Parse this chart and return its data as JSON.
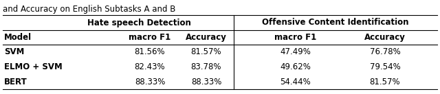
{
  "title": "and Accuracy on English Subtasks A and B",
  "col_group1": "Hate speech Detection",
  "col_group2": "Offensive Content Identification",
  "col_headers": [
    "Model",
    "macro F1",
    "Accuracy",
    "macro F1",
    "Accuracy"
  ],
  "rows": [
    [
      "SVM",
      "81.56%",
      "81.57%",
      "47.49%",
      "76.78%"
    ],
    [
      "ELMO + SVM",
      "82.43%",
      "83.78%",
      "49.62%",
      "79.54%"
    ],
    [
      "BERT",
      "88.33%",
      "88.33%",
      "54.44%",
      "81.57%"
    ]
  ],
  "background": "#ffffff",
  "text_color": "#000000",
  "fontsize": 8.5,
  "title_fontsize": 8.5
}
